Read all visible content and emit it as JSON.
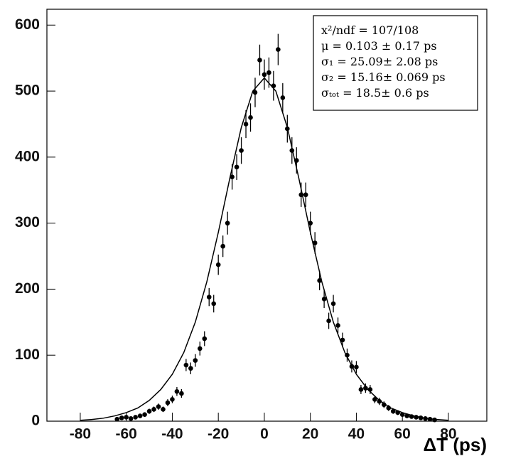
{
  "chart_data": {
    "type": "scatter",
    "xlabel": "ΔT (ps)",
    "xlim": [
      -94.5,
      96.7
    ],
    "ylim": [
      0,
      624
    ],
    "xticks": [
      -80,
      -60,
      -40,
      -20,
      0,
      20,
      40,
      60,
      80
    ],
    "yticks": [
      0,
      100,
      200,
      300,
      400,
      500,
      600
    ],
    "grid": false,
    "annotations": [
      "x²/ndf = 107/108",
      "μ  = 0.103 ± 0.17 ps",
      "σ₁  = 25.09± 2.08 ps",
      "σ₂  = 15.16± 0.069 ps",
      "σₜₒₜ = 18.5± 0.6 ps"
    ],
    "series": [
      {
        "kind": "points",
        "color": "#000000",
        "x": [
          -64,
          -62,
          -60,
          -58,
          -56,
          -54,
          -52,
          -50,
          -48,
          -46,
          -44,
          -42,
          -40,
          -38,
          -36,
          -34,
          -32,
          -30,
          -28,
          -26,
          -24,
          -22,
          -20,
          -18,
          -16,
          -14,
          -12,
          -10,
          -8,
          -6,
          -4,
          -2,
          0,
          2,
          4,
          6,
          8,
          10,
          12,
          14,
          16,
          18,
          20,
          22,
          24,
          26,
          28,
          30,
          32,
          34,
          36,
          38,
          40,
          42,
          44,
          46,
          48,
          50,
          52,
          54,
          56,
          58,
          60,
          62,
          64,
          66,
          68,
          70,
          72,
          74
        ],
        "values": [
          3,
          5,
          6,
          4,
          6,
          8,
          10,
          15,
          18,
          22,
          18,
          28,
          33,
          45,
          42,
          85,
          80,
          92,
          110,
          125,
          188,
          178,
          237,
          265,
          300,
          370,
          385,
          410,
          450,
          460,
          498,
          547,
          525,
          528,
          508,
          563,
          490,
          443,
          410,
          395,
          343,
          343,
          300,
          270,
          213,
          185,
          152,
          178,
          145,
          123,
          100,
          83,
          82,
          48,
          50,
          48,
          33,
          30,
          25,
          20,
          15,
          13,
          10,
          8,
          7,
          6,
          5,
          4,
          3,
          2
        ],
        "errors": [
          1.7,
          2.2,
          2.4,
          2,
          2.4,
          2.8,
          3.2,
          3.9,
          4.2,
          4.7,
          4.2,
          5.3,
          5.7,
          6.7,
          6.5,
          9.2,
          8.9,
          9.6,
          10.5,
          11.2,
          13.7,
          13.3,
          15.4,
          16.3,
          17.3,
          19.2,
          19.6,
          20.2,
          21.2,
          21.4,
          22.3,
          23.4,
          22.9,
          23,
          22.5,
          23.7,
          22.1,
          21,
          20.2,
          19.9,
          18.5,
          18.5,
          17.3,
          16.4,
          14.6,
          13.6,
          12.3,
          13.3,
          12,
          11.1,
          10,
          9.1,
          9.1,
          6.9,
          7.1,
          6.9,
          5.7,
          5.5,
          5,
          4.5,
          3.9,
          3.6,
          3.2,
          2.8,
          2.6,
          2.4,
          2.2,
          2,
          1.7,
          1.4
        ]
      },
      {
        "kind": "line",
        "color": "#000000",
        "x": [
          -80,
          -75,
          -70,
          -65,
          -60,
          -55,
          -50,
          -45,
          -40,
          -35,
          -30,
          -25,
          -20,
          -15,
          -10,
          -5,
          0,
          5,
          10,
          15,
          20,
          25,
          30,
          35,
          40,
          45,
          50,
          55,
          60,
          65,
          70,
          75,
          80
        ],
        "values": [
          1.4,
          2.5,
          4.5,
          8,
          13,
          20,
          31.5,
          48,
          71,
          104,
          150,
          211,
          286,
          368,
          445,
          500,
          520,
          500,
          445,
          368,
          286,
          211,
          150,
          104,
          71,
          48,
          31.5,
          20,
          13,
          8,
          4.5,
          2.5,
          1.4
        ]
      }
    ]
  }
}
